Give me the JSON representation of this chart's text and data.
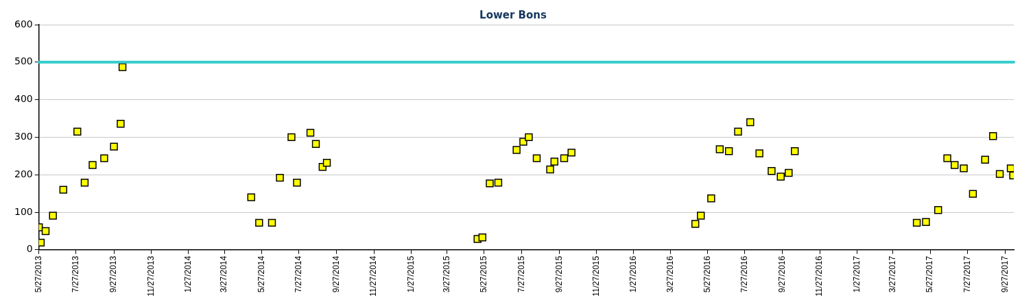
{
  "chart_data": {
    "type": "scatter",
    "title": "Lower Bons",
    "marker": "square",
    "grid": "y",
    "xlim": [
      "2013-05-27",
      "2017-10-11"
    ],
    "xticks": [
      {
        "value": "2013-05-27",
        "label": "5/27/2013"
      },
      {
        "value": "2013-07-27",
        "label": "7/27/2013"
      },
      {
        "value": "2013-09-27",
        "label": "9/27/2013"
      },
      {
        "value": "2013-11-27",
        "label": "11/27/2013"
      },
      {
        "value": "2014-01-27",
        "label": "1/27/2014"
      },
      {
        "value": "2014-03-27",
        "label": "3/27/2014"
      },
      {
        "value": "2014-05-27",
        "label": "5/27/2014"
      },
      {
        "value": "2014-07-27",
        "label": "7/27/2014"
      },
      {
        "value": "2014-09-27",
        "label": "9/27/2014"
      },
      {
        "value": "2014-11-27",
        "label": "11/27/2014"
      },
      {
        "value": "2015-01-27",
        "label": "1/27/2015"
      },
      {
        "value": "2015-03-27",
        "label": "3/27/2015"
      },
      {
        "value": "2015-05-27",
        "label": "5/27/2015"
      },
      {
        "value": "2015-07-27",
        "label": "7/27/2015"
      },
      {
        "value": "2015-09-27",
        "label": "9/27/2015"
      },
      {
        "value": "2015-11-27",
        "label": "11/27/2015"
      },
      {
        "value": "2016-01-27",
        "label": "1/27/2016"
      },
      {
        "value": "2016-03-27",
        "label": "3/27/2016"
      },
      {
        "value": "2016-05-27",
        "label": "5/27/2016"
      },
      {
        "value": "2016-07-27",
        "label": "7/27/2016"
      },
      {
        "value": "2016-09-27",
        "label": "9/27/2016"
      },
      {
        "value": "2016-11-27",
        "label": "11/27/2016"
      },
      {
        "value": "2017-01-27",
        "label": "1/27/2017"
      },
      {
        "value": "2017-03-27",
        "label": "3/27/2017"
      },
      {
        "value": "2017-05-27",
        "label": "5/27/2017"
      },
      {
        "value": "2017-07-27",
        "label": "7/27/2017"
      },
      {
        "value": "2017-09-27",
        "label": "9/27/2017"
      }
    ],
    "ylim": [
      0,
      600
    ],
    "yticks": [
      0,
      100,
      200,
      300,
      400,
      500,
      600
    ],
    "ref_lines": [
      {
        "axis": "y",
        "value": 500,
        "color": "#33cccc"
      }
    ],
    "series": [
      {
        "color": "#ffff00",
        "x": [
          "2013-05-27",
          "2013-05-30",
          "2013-06-07",
          "2013-06-19",
          "2013-07-06",
          "2013-07-29",
          "2013-08-10",
          "2013-08-23",
          "2013-09-11",
          "2013-09-27",
          "2013-10-08",
          "2013-10-11",
          "2014-05-10",
          "2014-05-23",
          "2014-06-13",
          "2014-06-26",
          "2014-07-15",
          "2014-07-24",
          "2014-08-15",
          "2014-08-24",
          "2014-09-04",
          "2014-09-11",
          "2015-05-16",
          "2015-05-24",
          "2015-06-05",
          "2015-06-19",
          "2015-07-19",
          "2015-07-30",
          "2015-08-08",
          "2015-08-21",
          "2015-09-12",
          "2015-09-19",
          "2015-10-05",
          "2015-10-17",
          "2016-05-07",
          "2016-05-16",
          "2016-06-02",
          "2016-06-16",
          "2016-07-01",
          "2016-07-16",
          "2016-08-05",
          "2016-08-20",
          "2016-09-09",
          "2016-09-24",
          "2016-10-07",
          "2016-10-17",
          "2017-05-05",
          "2017-05-20",
          "2017-06-09",
          "2017-06-24",
          "2017-07-06",
          "2017-07-21",
          "2017-08-05",
          "2017-08-25",
          "2017-09-07",
          "2017-09-18",
          "2017-10-06",
          "2017-10-10"
        ],
        "values": [
          60,
          19,
          50,
          91,
          160,
          315,
          179,
          226,
          244,
          275,
          336,
          487,
          140,
          72,
          72,
          192,
          300,
          179,
          312,
          282,
          221,
          232,
          29,
          33,
          177,
          179,
          266,
          288,
          300,
          244,
          214,
          235,
          244,
          259,
          69,
          91,
          137,
          268,
          263,
          315,
          340,
          257,
          210,
          195,
          205,
          263,
          72,
          74,
          106,
          244,
          226,
          217,
          149,
          240,
          303,
          202,
          217,
          198
        ]
      }
    ]
  }
}
